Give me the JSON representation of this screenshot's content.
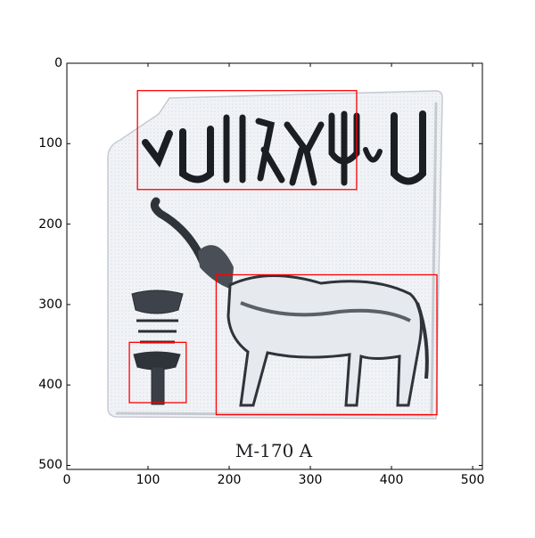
{
  "image": {
    "caption": "M-170 A",
    "content": "Indus Valley seal impression"
  },
  "axes": {
    "xlim": [
      0,
      512
    ],
    "ylim_top": 0,
    "ylim_bottom": 505,
    "x_ticks": [
      0,
      100,
      200,
      300,
      400,
      500
    ],
    "y_ticks": [
      0,
      100,
      200,
      300,
      400,
      500
    ]
  },
  "annotations": [
    {
      "label": "script-signs",
      "x0": 87,
      "y0": 34,
      "x1": 357,
      "y1": 157,
      "color": "#ff0000"
    },
    {
      "label": "animal",
      "x0": 184,
      "y0": 263,
      "x1": 456,
      "y1": 437,
      "color": "#ff0000"
    },
    {
      "label": "standard-lower",
      "x0": 77,
      "y0": 347,
      "x1": 147,
      "y1": 422,
      "color": "#ff0000"
    }
  ]
}
